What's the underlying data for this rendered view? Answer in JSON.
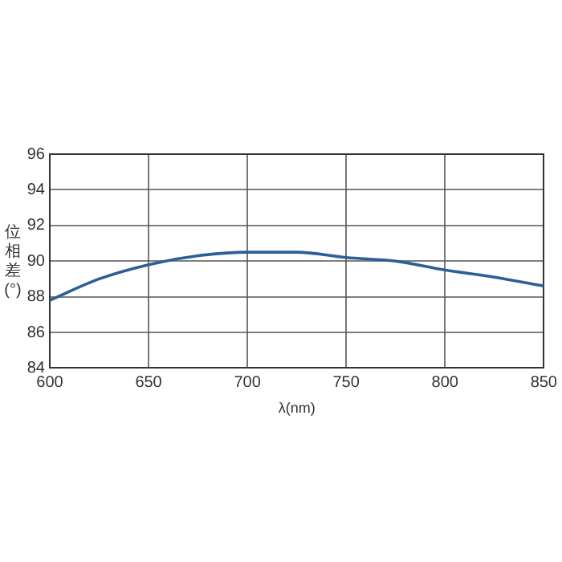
{
  "chart_data": {
    "type": "line",
    "xlabel": "λ(nm)",
    "ylabel": "位相差(°)",
    "x": [
      600,
      625,
      650,
      675,
      700,
      725,
      750,
      775,
      800,
      825,
      850
    ],
    "series": [
      {
        "color": "#2b5f97",
        "values": [
          87.8,
          89.0,
          89.8,
          90.3,
          90.5,
          90.5,
          90.2,
          90.0,
          89.5,
          89.1,
          88.6
        ]
      }
    ],
    "xlim": [
      600,
      850
    ],
    "xticks": [
      600,
      650,
      700,
      750,
      800,
      850
    ],
    "ylim": [
      84,
      96
    ],
    "yticks": [
      84,
      86,
      88,
      90,
      92,
      94,
      96
    ],
    "grid": true,
    "legend": false,
    "marker": "none",
    "line_style": "solid"
  }
}
